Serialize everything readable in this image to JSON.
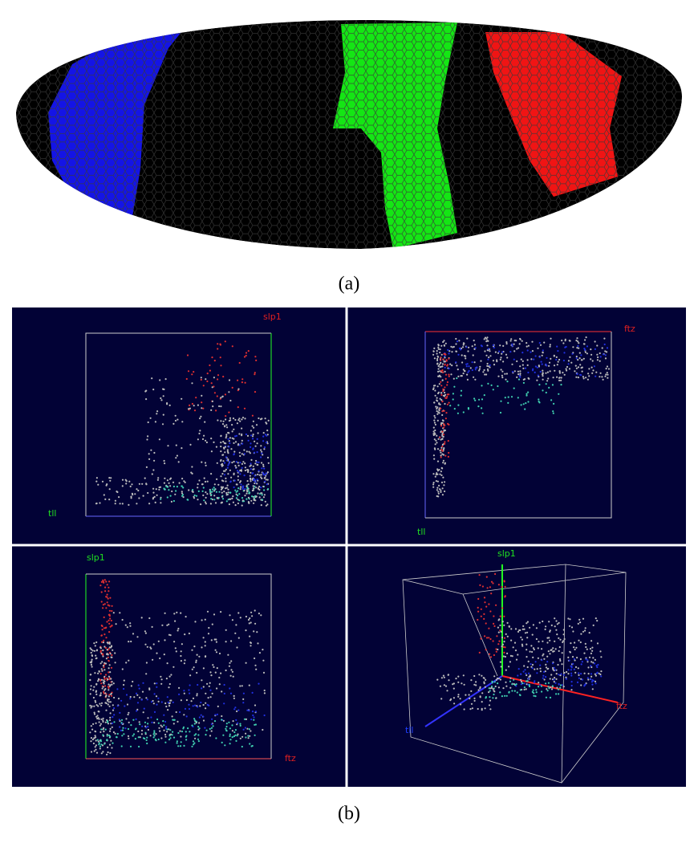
{
  "figure": {
    "panel_a": {
      "caption": "(a)"
    },
    "panel_b": {
      "caption": "(b)",
      "plots": [
        {
          "labels": [
            {
              "text": "slp1",
              "color": "#e02020"
            },
            {
              "text": "tll",
              "color": "#20e020"
            }
          ]
        },
        {
          "labels": [
            {
              "text": "ftz",
              "color": "#e02020"
            },
            {
              "text": "tll",
              "color": "#20e020"
            }
          ]
        },
        {
          "labels": [
            {
              "text": "slp1",
              "color": "#20e020"
            },
            {
              "text": "ftz",
              "color": "#e02020"
            }
          ]
        },
        {
          "labels": [
            {
              "text": "slp1",
              "color": "#20e020"
            },
            {
              "text": "ftz",
              "color": "#e02020"
            },
            {
              "text": "tll",
              "color": "#2040ff"
            }
          ]
        }
      ]
    }
  }
}
